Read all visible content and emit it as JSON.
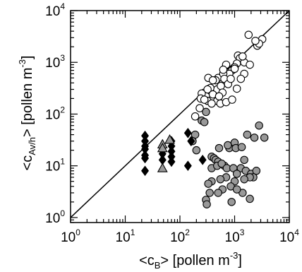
{
  "chart_data": {
    "type": "scatter",
    "title": "",
    "xlabel": {
      "pre": "<c",
      "sub": "B",
      "post": ">  [pollen m",
      "sup": "-3",
      "end": "]"
    },
    "ylabel": {
      "pre": "<c",
      "sub": "Av/h",
      "post": ">  [pollen m",
      "sup": "-3",
      "end": "]"
    },
    "xscale": "log",
    "yscale": "log",
    "xlim": [
      1,
      10000
    ],
    "ylim": [
      0.8,
      10000
    ],
    "x_ticks": [
      {
        "value": 1,
        "base": "10",
        "exp": "0"
      },
      {
        "value": 10,
        "base": "10",
        "exp": "1"
      },
      {
        "value": 100,
        "base": "10",
        "exp": "2"
      },
      {
        "value": 1000,
        "base": "10",
        "exp": "3"
      },
      {
        "value": 10000,
        "base": "10",
        "exp": "4"
      }
    ],
    "y_ticks": [
      {
        "value": 1,
        "base": "10",
        "exp": "0"
      },
      {
        "value": 10,
        "base": "10",
        "exp": "1"
      },
      {
        "value": 100,
        "base": "10",
        "exp": "2"
      },
      {
        "value": 1000,
        "base": "10",
        "exp": "3"
      },
      {
        "value": 10000,
        "base": "10",
        "exp": "4"
      }
    ],
    "reference_line": {
      "type": "1:1",
      "from": [
        1,
        1
      ],
      "to": [
        10000,
        10000
      ]
    },
    "grid": false,
    "legend": "none",
    "series": [
      {
        "marker": "open-circle",
        "color": "#000000",
        "fill": "#ffffff",
        "points": [
          [
            3200,
            2800
          ],
          [
            2600,
            2100
          ],
          [
            2800,
            2300
          ],
          [
            1800,
            3400
          ],
          [
            1150,
            1350
          ],
          [
            1250,
            1200
          ],
          [
            1100,
            950
          ],
          [
            1500,
            1000
          ],
          [
            1900,
            900
          ],
          [
            700,
            900
          ],
          [
            900,
            700
          ],
          [
            1000,
            800
          ],
          [
            750,
            500
          ],
          [
            800,
            600
          ],
          [
            500,
            500
          ],
          [
            620,
            600
          ],
          [
            650,
            480
          ],
          [
            450,
            450
          ],
          [
            480,
            300
          ],
          [
            560,
            350
          ],
          [
            760,
            380
          ],
          [
            850,
            480
          ],
          [
            1500,
            600
          ],
          [
            330,
            500
          ],
          [
            400,
            450
          ],
          [
            360,
            320
          ],
          [
            280,
            260
          ],
          [
            300,
            220
          ],
          [
            320,
            300
          ],
          [
            250,
            250
          ],
          [
            240,
            200
          ],
          [
            230,
            130
          ],
          [
            320,
            180
          ],
          [
            400,
            240
          ],
          [
            480,
            180
          ],
          [
            550,
            160
          ],
          [
            600,
            260
          ],
          [
            700,
            170
          ],
          [
            900,
            190
          ],
          [
            1300,
            480
          ],
          [
            1100,
            310
          ],
          [
            380,
            160
          ],
          [
            190,
            90
          ],
          [
            280,
            190
          ],
          [
            2400,
            2600
          ],
          [
            1400,
            1300
          ],
          [
            1000,
            750
          ],
          [
            620,
            720
          ],
          [
            520,
            220
          ]
        ]
      },
      {
        "marker": "filled-circle",
        "color": "#000000",
        "fill": "#999999",
        "points": [
          [
            300,
            110
          ],
          [
            250,
            75
          ],
          [
            280,
            70
          ],
          [
            190,
            40
          ],
          [
            170,
            30
          ],
          [
            200,
            20
          ],
          [
            2800,
            60
          ],
          [
            3500,
            35
          ],
          [
            2300,
            35
          ],
          [
            1700,
            40
          ],
          [
            1000,
            28
          ],
          [
            800,
            22
          ],
          [
            1050,
            22
          ],
          [
            1350,
            23
          ],
          [
            750,
            25
          ],
          [
            520,
            22
          ],
          [
            380,
            15
          ],
          [
            420,
            14
          ],
          [
            450,
            13
          ],
          [
            500,
            12
          ],
          [
            380,
            9
          ],
          [
            650,
            10
          ],
          [
            480,
            10
          ],
          [
            580,
            11
          ],
          [
            720,
            9
          ],
          [
            1500,
            13
          ],
          [
            1300,
            9
          ],
          [
            950,
            9
          ],
          [
            1100,
            7
          ],
          [
            1600,
            8
          ],
          [
            2000,
            7
          ],
          [
            2500,
            8
          ],
          [
            2200,
            6
          ],
          [
            1900,
            6
          ],
          [
            1500,
            5.5
          ],
          [
            1000,
            5
          ],
          [
            850,
            4
          ],
          [
            600,
            3.5
          ],
          [
            500,
            3
          ],
          [
            380,
            5
          ],
          [
            330,
            4.5
          ],
          [
            350,
            3
          ],
          [
            300,
            2.2
          ],
          [
            310,
            1.8
          ],
          [
            880,
            2
          ],
          [
            1400,
            3
          ],
          [
            1900,
            2.3
          ],
          [
            1100,
            3.5
          ],
          [
            700,
            6
          ],
          [
            550,
            5.5
          ]
        ]
      },
      {
        "marker": "filled-diamond",
        "color": "#000000",
        "fill": "#000000",
        "points": [
          [
            23,
            38
          ],
          [
            23,
            30
          ],
          [
            23,
            24
          ],
          [
            23,
            21
          ],
          [
            23,
            16
          ],
          [
            23,
            14
          ],
          [
            23,
            8
          ],
          [
            48,
            20
          ],
          [
            48,
            17
          ],
          [
            48,
            13
          ],
          [
            70,
            30
          ],
          [
            70,
            24
          ],
          [
            70,
            19
          ],
          [
            70,
            15
          ],
          [
            70,
            12
          ],
          [
            140,
            43
          ],
          [
            160,
            30
          ],
          [
            140,
            10
          ],
          [
            260,
            13
          ]
        ]
      },
      {
        "marker": "filled-triangle",
        "color": "#000000",
        "fill": "#999999",
        "points": [
          [
            48,
            26
          ],
          [
            48,
            22
          ],
          [
            48,
            9
          ],
          [
            65,
            32
          ]
        ]
      }
    ]
  }
}
